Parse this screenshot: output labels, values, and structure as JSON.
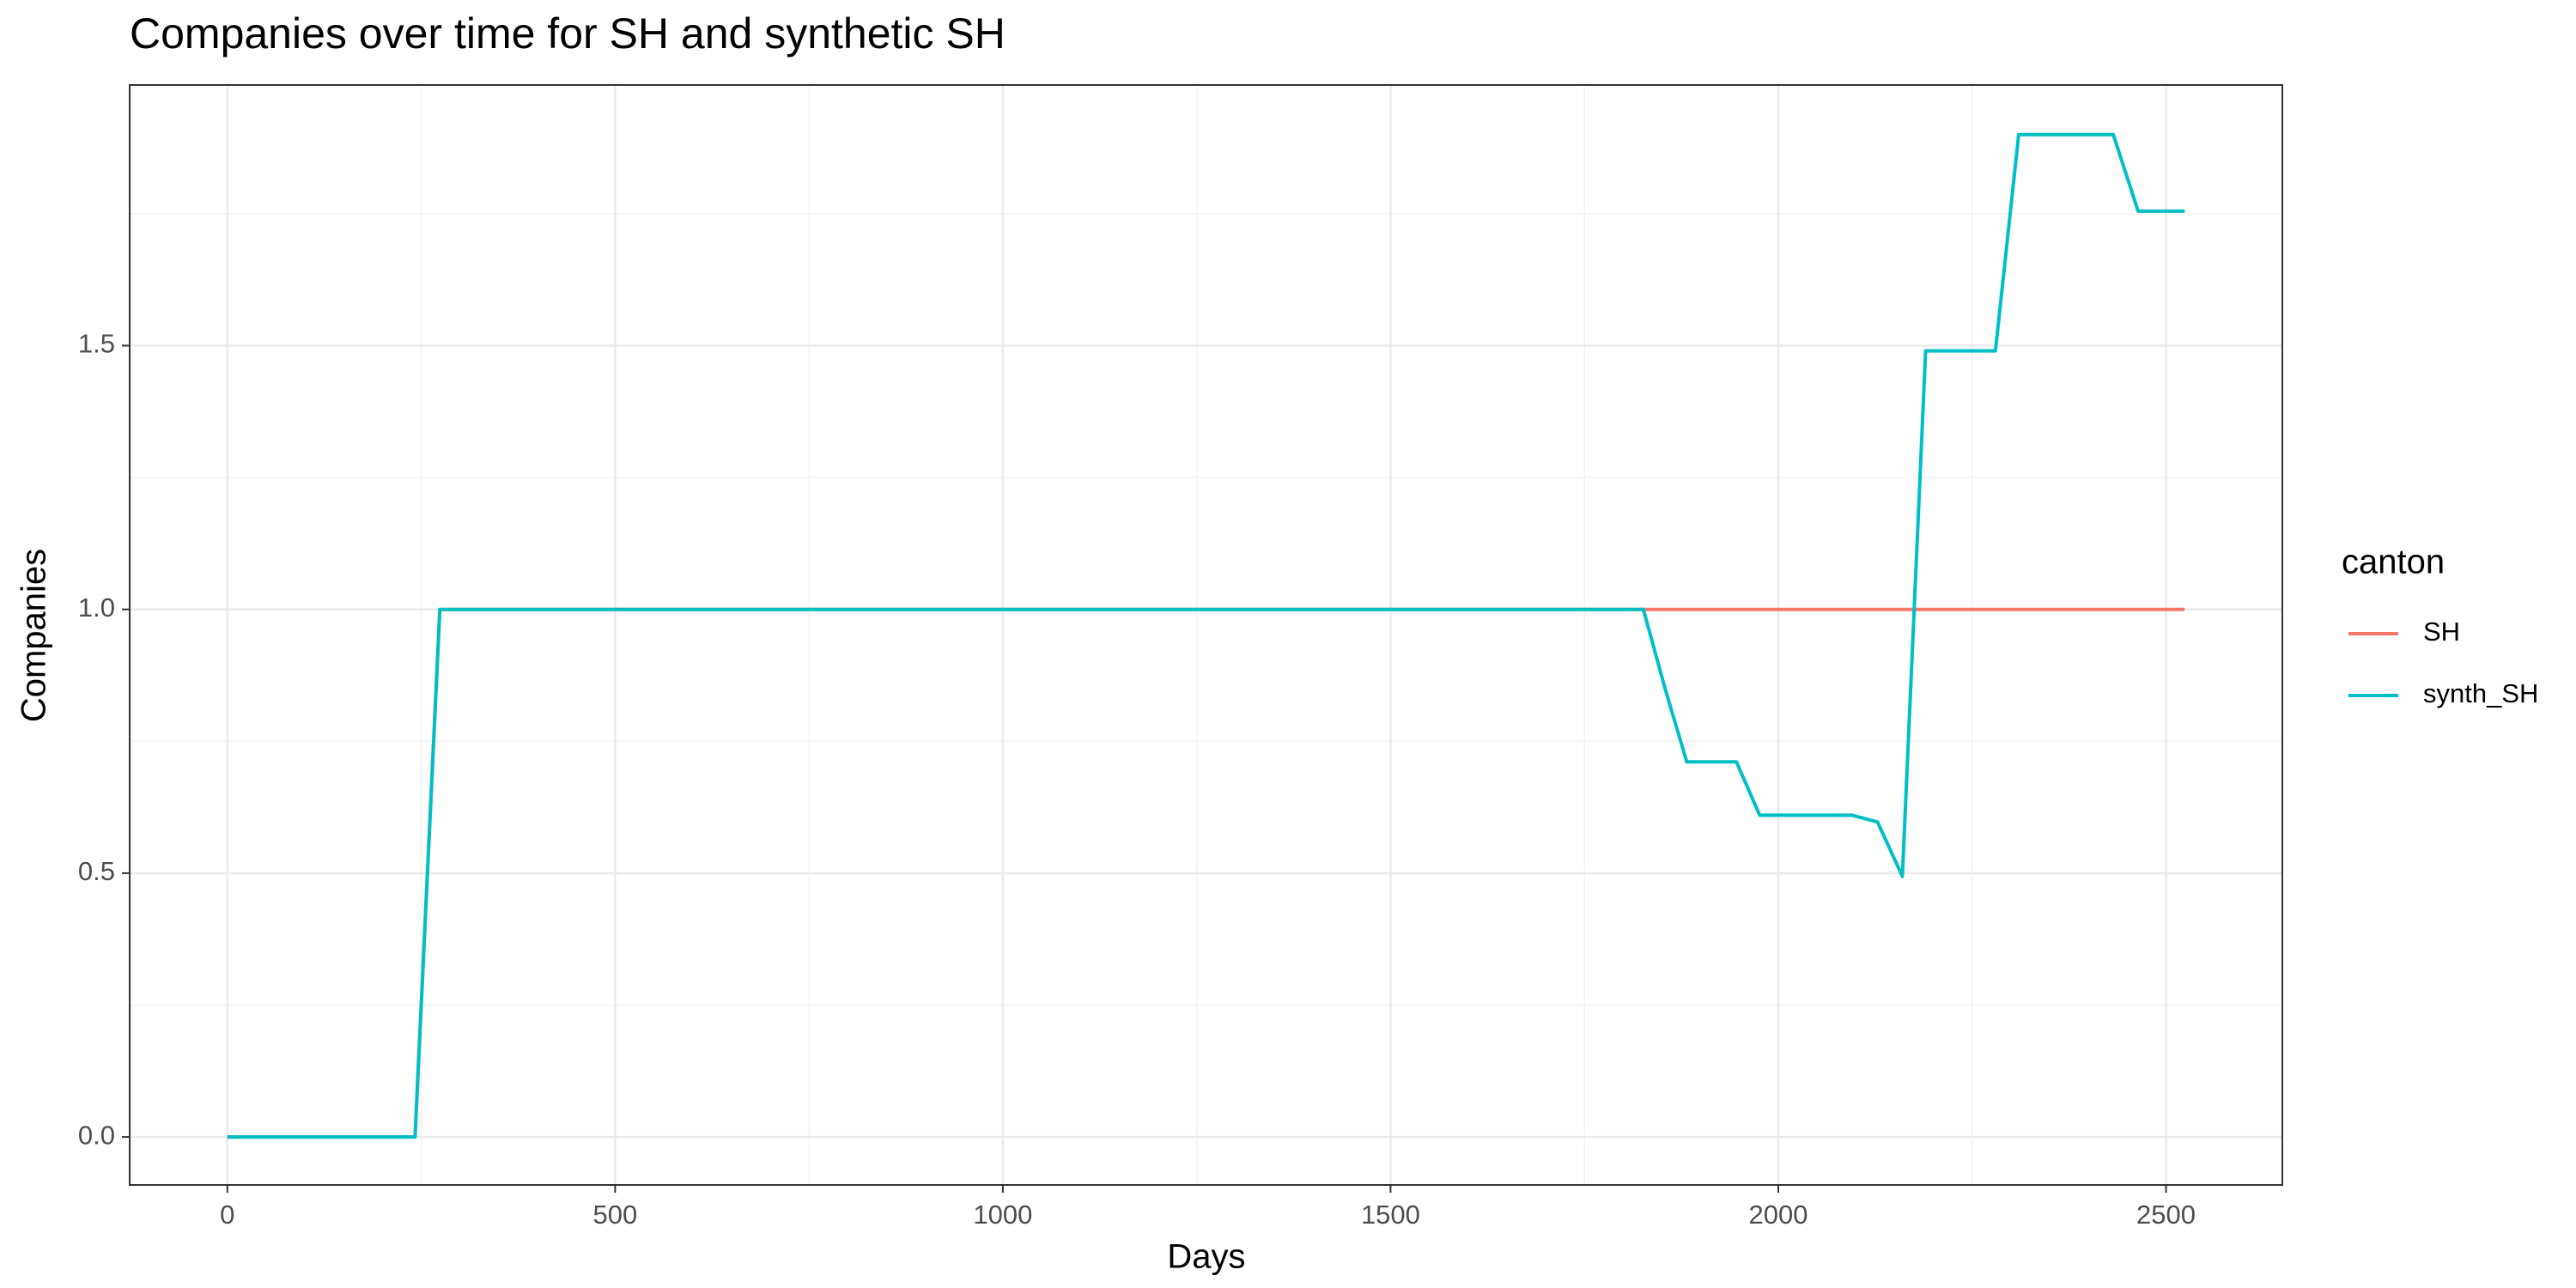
{
  "chart_data": {
    "type": "line",
    "title": "Companies over time for SH and synthetic SH",
    "x_label": "Days",
    "y_label": "Companies",
    "legend_title": "canton",
    "legend_position": "right",
    "grid": true,
    "x": [
      0,
      242,
      274,
      1826,
      1854,
      1882,
      1946,
      1976,
      2095,
      2128,
      2160,
      2190,
      2280,
      2310,
      2432,
      2464,
      2524
    ],
    "series": [
      {
        "name": "SH",
        "color": "#F8766D",
        "values": [
          0,
          0,
          1,
          1,
          1,
          1,
          1,
          1,
          1,
          1,
          1,
          1,
          1,
          1,
          1,
          1,
          1
        ]
      },
      {
        "name": "synth_SH",
        "color": "#00BFC4",
        "values": [
          0,
          0,
          1,
          1,
          0.85,
          0.711,
          0.711,
          0.61,
          0.61,
          0.597,
          0.494,
          1.49,
          1.49,
          1.9,
          1.9,
          1.755,
          1.755
        ]
      }
    ],
    "xlim": [
      -126,
      2650
    ],
    "ylim": [
      -0.091,
      1.994
    ],
    "xticks": [
      0,
      500,
      1000,
      1500,
      2000,
      2500
    ],
    "yticks": [
      {
        "value": 0,
        "label": "0.0"
      },
      {
        "value": 0.5,
        "label": "0.5"
      },
      {
        "value": 1,
        "label": "1.0"
      },
      {
        "value": 1.5,
        "label": "1.5"
      }
    ]
  }
}
